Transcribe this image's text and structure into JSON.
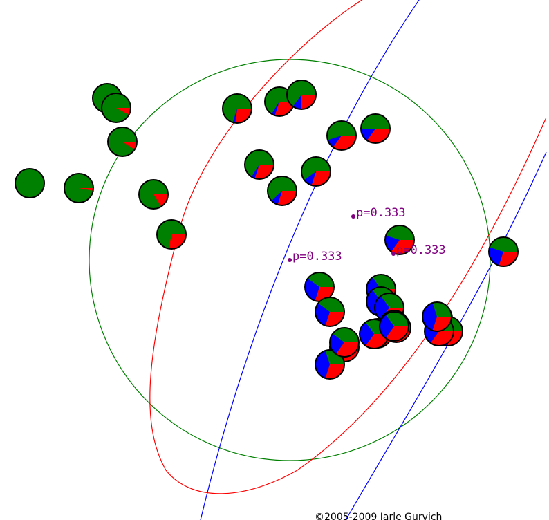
{
  "colors": {
    "green": "#008000",
    "red": "#ff0000",
    "blue": "#0000ff",
    "label": "#800080",
    "outline": "#000000",
    "contour_green": "#008000",
    "contour_red": "#ff0000",
    "contour_blue": "#0000ff"
  },
  "components": [
    {
      "id": "green",
      "label": "p=0.333"
    },
    {
      "id": "red",
      "label": "p=0.333"
    },
    {
      "id": "blue",
      "label": "p=0.333"
    }
  ],
  "points": [
    {
      "g": 1.0,
      "r": 0.0,
      "b": 0.0
    },
    {
      "g": 0.97,
      "r": 0.03,
      "b": 0.0
    },
    {
      "g": 0.97,
      "r": 0.03,
      "b": 0.0
    },
    {
      "g": 0.92,
      "r": 0.08,
      "b": 0.0
    },
    {
      "g": 0.91,
      "r": 0.09,
      "b": 0.0
    },
    {
      "g": 0.84,
      "r": 0.16,
      "b": 0.0
    },
    {
      "g": 0.72,
      "r": 0.28,
      "b": 0.0
    },
    {
      "g": 0.7,
      "r": 0.27,
      "b": 0.03
    },
    {
      "g": 0.66,
      "r": 0.3,
      "b": 0.04
    },
    {
      "g": 0.66,
      "r": 0.3,
      "b": 0.04
    },
    {
      "g": 0.62,
      "r": 0.3,
      "b": 0.08
    },
    {
      "g": 0.65,
      "r": 0.25,
      "b": 0.1
    },
    {
      "g": 0.6,
      "r": 0.3,
      "b": 0.1
    },
    {
      "g": 0.55,
      "r": 0.35,
      "b": 0.1
    },
    {
      "g": 0.5,
      "r": 0.35,
      "b": 0.15
    },
    {
      "g": 0.45,
      "r": 0.35,
      "b": 0.2
    },
    {
      "g": 0.45,
      "r": 0.3,
      "b": 0.25
    },
    {
      "g": 0.4,
      "r": 0.3,
      "b": 0.3
    },
    {
      "g": 0.4,
      "r": 0.3,
      "b": 0.3
    },
    {
      "g": 0.35,
      "r": 0.3,
      "b": 0.35
    },
    {
      "g": 0.35,
      "r": 0.3,
      "b": 0.35
    },
    {
      "g": 0.35,
      "r": 0.35,
      "b": 0.3
    },
    {
      "g": 0.3,
      "r": 0.35,
      "b": 0.35
    },
    {
      "g": 0.35,
      "r": 0.3,
      "b": 0.35
    },
    {
      "g": 0.3,
      "r": 0.35,
      "b": 0.35
    },
    {
      "g": 0.3,
      "r": 0.3,
      "b": 0.4
    },
    {
      "g": 0.3,
      "r": 0.25,
      "b": 0.45
    },
    {
      "g": 0.3,
      "r": 0.35,
      "b": 0.35
    },
    {
      "g": 0.3,
      "r": 0.3,
      "b": 0.4
    },
    {
      "g": 0.25,
      "r": 0.3,
      "b": 0.45
    },
    {
      "g": 0.3,
      "r": 0.3,
      "b": 0.4
    },
    {
      "g": 0.35,
      "r": 0.35,
      "b": 0.3
    },
    {
      "g": 0.35,
      "r": 0.35,
      "b": 0.3
    },
    {
      "g": 0.4,
      "r": 0.35,
      "b": 0.25
    }
  ],
  "footer": {
    "copyright": "©2005-2009 Jarle Gurvich"
  }
}
